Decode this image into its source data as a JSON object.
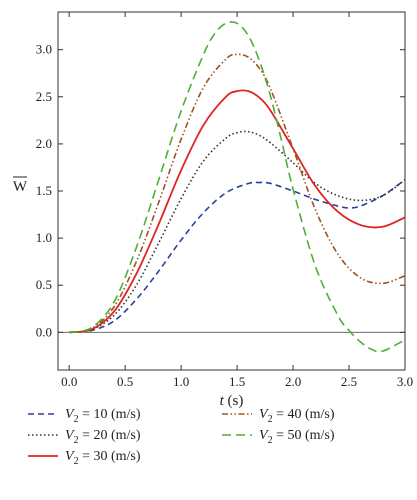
{
  "chart_data": {
    "type": "line",
    "xlabel_main": "t",
    "xlabel_unit": " (s)",
    "ylabel_main": "W",
    "xlim": [
      -0.1,
      3.0
    ],
    "ylim": [
      -0.4,
      3.4
    ],
    "xticks": [
      "0.0",
      "0.5",
      "1.0",
      "1.5",
      "2.0",
      "2.5",
      "3.0"
    ],
    "yticks": [
      "0.0",
      "0.5",
      "1.0",
      "1.5",
      "2.0",
      "2.5",
      "3.0"
    ],
    "grid": false,
    "legend_position": "bottom",
    "series": [
      {
        "symbol": "V",
        "subscript": "2",
        "value_text": " = 10 (m/s)",
        "color": "#2b3f9e",
        "dash": "6,4",
        "x": [
          0.0,
          0.2,
          0.4,
          0.6,
          0.8,
          1.0,
          1.2,
          1.4,
          1.6,
          1.7,
          1.8,
          2.0,
          2.2,
          2.4,
          2.5,
          2.6,
          2.8,
          3.0
        ],
        "y": [
          0.0,
          0.02,
          0.12,
          0.35,
          0.65,
          0.98,
          1.27,
          1.48,
          1.58,
          1.59,
          1.58,
          1.5,
          1.41,
          1.34,
          1.32,
          1.34,
          1.45,
          1.62
        ]
      },
      {
        "symbol": "V",
        "subscript": "2",
        "value_text": " = 20 (m/s)",
        "color": "#333333",
        "dash": "1.5,2.5",
        "x": [
          0.0,
          0.2,
          0.4,
          0.6,
          0.8,
          1.0,
          1.2,
          1.4,
          1.5,
          1.6,
          1.7,
          1.8,
          2.0,
          2.2,
          2.4,
          2.6,
          2.8,
          3.0
        ],
        "y": [
          0.0,
          0.03,
          0.18,
          0.5,
          0.95,
          1.42,
          1.82,
          2.06,
          2.12,
          2.13,
          2.09,
          2.01,
          1.8,
          1.58,
          1.45,
          1.4,
          1.45,
          1.62
        ]
      },
      {
        "symbol": "V",
        "subscript": "2",
        "value_text": " = 30 (m/s)",
        "color": "#e02424",
        "dash": "",
        "x": [
          0.0,
          0.2,
          0.4,
          0.6,
          0.8,
          1.0,
          1.2,
          1.4,
          1.5,
          1.6,
          1.7,
          1.8,
          2.0,
          2.2,
          2.4,
          2.6,
          2.8,
          3.0
        ],
        "y": [
          0.0,
          0.03,
          0.22,
          0.62,
          1.15,
          1.72,
          2.2,
          2.5,
          2.56,
          2.56,
          2.49,
          2.35,
          1.95,
          1.55,
          1.28,
          1.14,
          1.12,
          1.22
        ]
      },
      {
        "symbol": "V",
        "subscript": "2",
        "value_text": " = 40 (m/s)",
        "color": "#a0521d",
        "dash": "6,2.5,1.5,2.5,1.5,2.5",
        "x": [
          0.0,
          0.2,
          0.4,
          0.6,
          0.8,
          1.0,
          1.2,
          1.4,
          1.5,
          1.6,
          1.7,
          1.8,
          2.0,
          2.2,
          2.4,
          2.6,
          2.8,
          3.0
        ],
        "y": [
          0.0,
          0.04,
          0.27,
          0.75,
          1.38,
          2.05,
          2.6,
          2.9,
          2.95,
          2.92,
          2.8,
          2.58,
          1.95,
          1.3,
          0.83,
          0.58,
          0.52,
          0.6
        ]
      },
      {
        "symbol": "V",
        "subscript": "2",
        "value_text": " = 50 (m/s)",
        "color": "#4daf35",
        "dash": "9,5",
        "x": [
          0.0,
          0.2,
          0.4,
          0.6,
          0.8,
          1.0,
          1.2,
          1.3,
          1.4,
          1.5,
          1.6,
          1.7,
          1.8,
          1.9,
          2.0,
          2.2,
          2.4,
          2.5,
          2.6,
          2.7,
          2.8,
          3.0
        ],
        "y": [
          0.0,
          0.05,
          0.32,
          0.9,
          1.62,
          2.35,
          2.95,
          3.17,
          3.28,
          3.28,
          3.15,
          2.88,
          2.5,
          2.02,
          1.52,
          0.7,
          0.18,
          0.02,
          -0.1,
          -0.18,
          -0.2,
          -0.08
        ]
      }
    ]
  }
}
